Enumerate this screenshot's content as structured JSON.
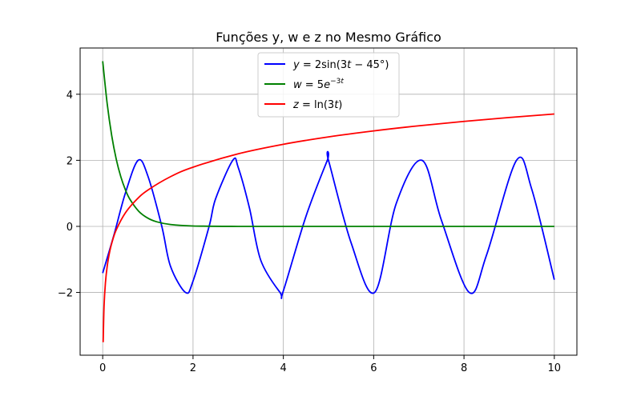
{
  "chart_data": {
    "type": "line",
    "title": "Funções y, w e z no Mesmo Gráfico",
    "xlabel": "",
    "ylabel": "",
    "xlim": [
      -0.5,
      10.5
    ],
    "ylim": [
      -3.9,
      5.4
    ],
    "xticks": [
      0,
      2,
      4,
      6,
      8,
      10
    ],
    "yticks": [
      -2,
      0,
      2,
      4
    ],
    "grid": true,
    "legend_position": "top-center",
    "series": [
      {
        "name": "y = 2sin(3t − 45°)",
        "color": "#0000ff",
        "x": [
          0.0,
          0.25,
          0.5,
          0.785,
          1.0,
          1.309,
          1.5,
          1.833,
          2.0,
          2.356,
          2.5,
          2.88,
          3.0,
          3.25,
          3.5,
          3.927,
          4.0,
          4.5,
          4.974,
          5.0,
          5.5,
          6.021,
          6.5,
          7.069,
          7.5,
          8.116,
          8.5,
          9.163,
          9.5,
          10.0
        ],
        "values": [
          -1.414,
          -0.255,
          0.998,
          2.0,
          1.525,
          0.0,
          -1.204,
          -2.0,
          -1.655,
          0.0,
          0.836,
          2.0,
          1.787,
          0.553,
          -1.027,
          -2.0,
          -1.951,
          0.301,
          2.0,
          1.997,
          -0.496,
          -2.0,
          0.693,
          2.0,
          0.186,
          -2.0,
          -0.865,
          2.0,
          1.125,
          -1.615
        ]
      },
      {
        "name": "w = 5e^(−3t)",
        "color": "#008000",
        "x": [
          0.0,
          0.1,
          0.2,
          0.3,
          0.4,
          0.5,
          0.6,
          0.8,
          1.0,
          1.2,
          1.5,
          2.0,
          3.0,
          4.0,
          6.0,
          8.0,
          10.0
        ],
        "values": [
          5.0,
          3.704,
          2.744,
          2.033,
          1.506,
          1.116,
          0.826,
          0.454,
          0.249,
          0.137,
          0.056,
          0.012,
          0.0,
          0.0,
          0.0,
          0.0,
          0.0
        ]
      },
      {
        "name": "z = ln(3t)",
        "color": "#ff0000",
        "x": [
          0.01,
          0.03,
          0.06,
          0.1,
          0.15,
          0.2,
          0.3,
          0.5,
          0.75,
          1.0,
          1.5,
          2.0,
          3.0,
          4.0,
          5.0,
          6.0,
          7.0,
          8.0,
          9.0,
          10.0
        ],
        "values": [
          -3.507,
          -2.408,
          -1.715,
          -1.204,
          -0.799,
          -0.511,
          -0.105,
          0.405,
          0.811,
          1.099,
          1.504,
          1.792,
          2.197,
          2.485,
          2.708,
          2.89,
          3.045,
          3.178,
          3.296,
          3.401
        ]
      }
    ]
  }
}
